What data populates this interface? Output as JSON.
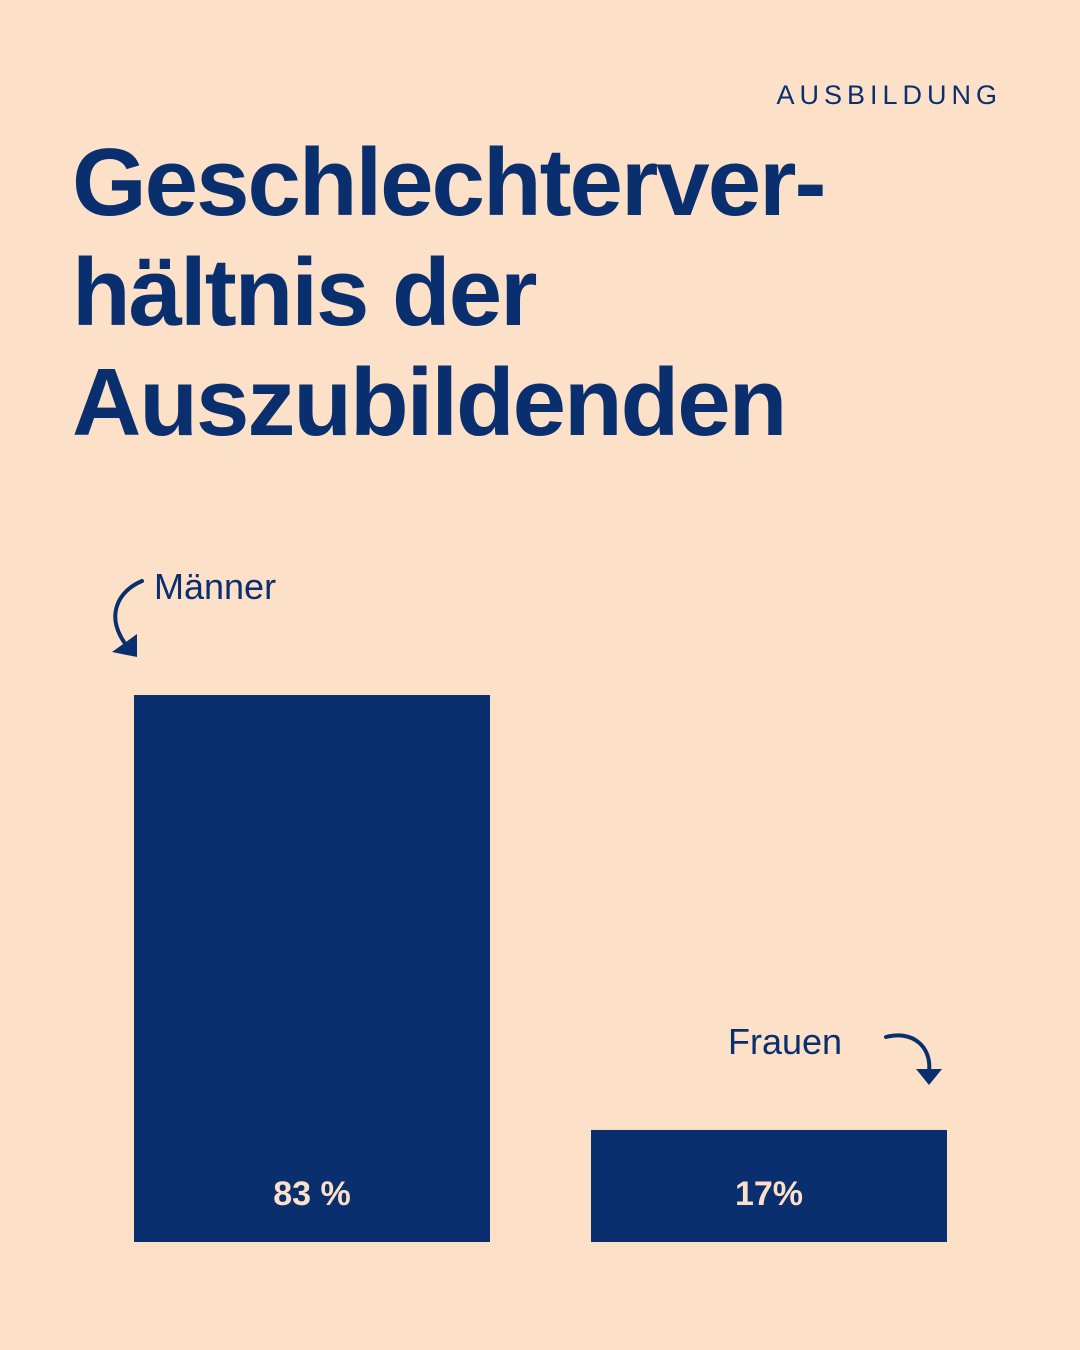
{
  "header": {
    "kicker": "AUSBILDUNG",
    "title_lines": [
      "Geschlechterver-",
      "hältnis der",
      "Auszubildenden"
    ]
  },
  "colors": {
    "background": "#FDE0C8",
    "primary": "#0A2F6F"
  },
  "chart_data": {
    "type": "bar",
    "categories": [
      "Männer",
      "Frauen"
    ],
    "values": [
      83,
      17
    ],
    "value_labels": [
      "83 %",
      "17%"
    ],
    "unit": "%",
    "ylim": [
      0,
      83
    ],
    "grid": false,
    "legend": "none",
    "annotations": [
      {
        "category": "Männer",
        "icon": "curved-arrow-down-icon",
        "side": "left"
      },
      {
        "category": "Frauen",
        "icon": "curved-arrow-down-icon",
        "side": "right"
      }
    ]
  }
}
